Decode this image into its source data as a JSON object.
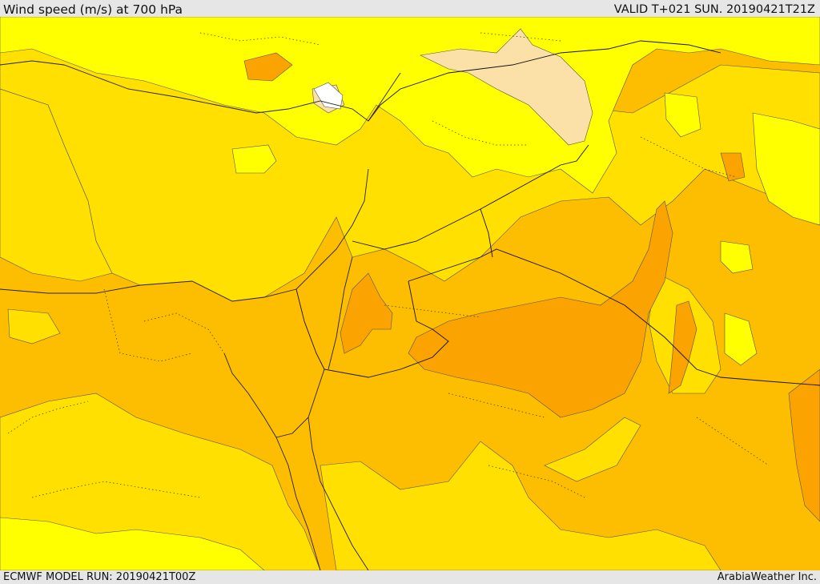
{
  "header": {
    "title": "Wind speed (m/s) at 700 hPa",
    "valid_time": "VALID T+021 SUN. 20190421T21Z"
  },
  "footer": {
    "model_run": "ECMWF MODEL RUN: 20190421T00Z",
    "credit": "ArabiaWeather Inc."
  },
  "colors": {
    "band_lightest": "#fbe1a8",
    "band_light": "#ffff00",
    "band_mid": "#ffe000",
    "band_deep": "#fdbd00",
    "band_deeper": "#fba300",
    "coast_border": "#222222"
  }
}
